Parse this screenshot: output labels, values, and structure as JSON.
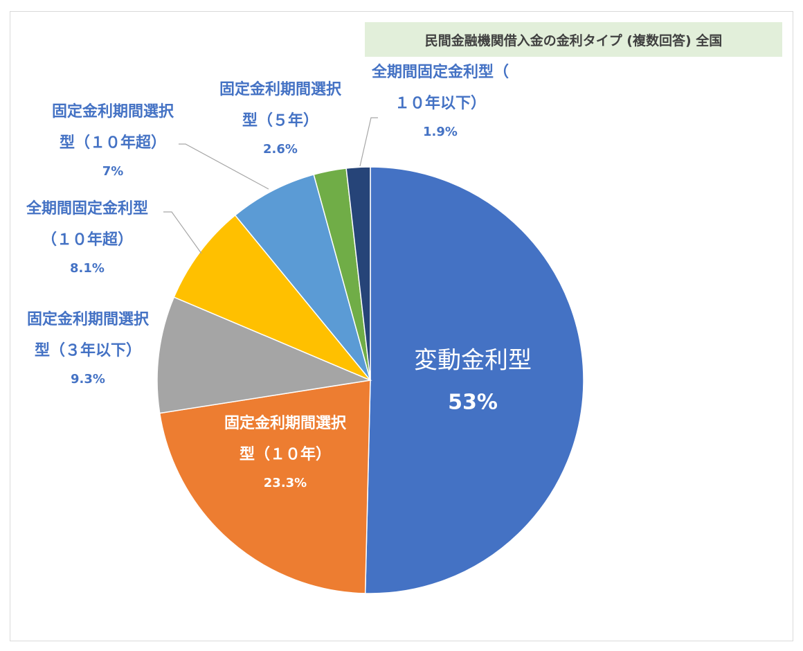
{
  "chart_data": {
    "type": "pie",
    "title": "民間金融機関借入金の金利タイプ (複数回答) 全国",
    "title_background": "#e2efda",
    "start_angle_deg": 0,
    "direction": "clockwise",
    "label_color": "#4472c4",
    "inside_label_color": "#ffffff",
    "slices": [
      {
        "name_lines": [
          "変動金利型"
        ],
        "value": 53,
        "value_label": "53%",
        "color": "#4472c4",
        "label": "inside-large"
      },
      {
        "name_lines": [
          "固定金利期間選択",
          "型（１０年）"
        ],
        "value": 23.3,
        "value_label": "23.3%",
        "color": "#ed7d31",
        "label": "inside"
      },
      {
        "name_lines": [
          "固定金利期間選択",
          "型（３年以下）"
        ],
        "value": 9.3,
        "value_label": "9.3%",
        "color": "#a5a5a5",
        "label": "outside"
      },
      {
        "name_lines": [
          "全期間固定金利型",
          "（１０年超）"
        ],
        "value": 8.1,
        "value_label": "8.1%",
        "color": "#ffc000",
        "label": "outside"
      },
      {
        "name_lines": [
          "固定金利期間選択",
          "型（１０年超）"
        ],
        "value": 7,
        "value_label": "7%",
        "color": "#5b9bd5",
        "label": "outside"
      },
      {
        "name_lines": [
          "固定金利期間選択",
          "型（５年）"
        ],
        "value": 2.6,
        "value_label": "2.6%",
        "color": "#70ad47",
        "label": "outside"
      },
      {
        "name_lines": [
          "全期間固定金利型（",
          "１０年以下）"
        ],
        "value": 1.9,
        "value_label": "1.9%",
        "color": "#264478",
        "label": "outside"
      }
    ]
  }
}
